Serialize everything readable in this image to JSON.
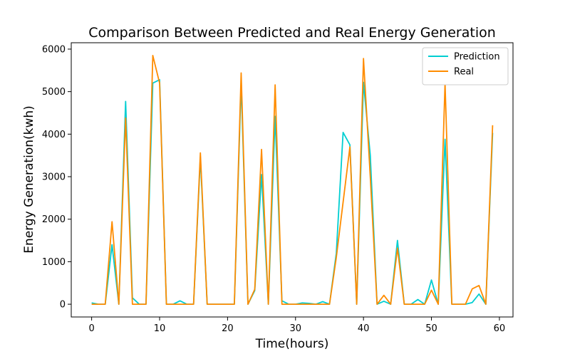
{
  "chart_data": {
    "type": "line",
    "title": "Comparison Between Predicted and Real Energy Generation",
    "xlabel": "Time(hours)",
    "ylabel": "Energy Generation(kwh)",
    "xlim": [
      -3,
      62
    ],
    "ylim": [
      -300,
      6150
    ],
    "xticks": [
      0,
      10,
      20,
      30,
      40,
      50,
      60
    ],
    "yticks": [
      0,
      1000,
      2000,
      3000,
      4000,
      5000,
      6000
    ],
    "grid": false,
    "legend_position": "top-right",
    "series": [
      {
        "name": "Prediction",
        "color": "#00CED1",
        "x": [
          0,
          1,
          2,
          3,
          4,
          5,
          6,
          7,
          8,
          9,
          10,
          11,
          12,
          13,
          14,
          15,
          16,
          17,
          18,
          19,
          20,
          21,
          22,
          23,
          24,
          25,
          26,
          27,
          28,
          29,
          30,
          31,
          32,
          33,
          34,
          35,
          36,
          37,
          38,
          39,
          40,
          41,
          42,
          43,
          44,
          45,
          46,
          47,
          48,
          49,
          50,
          51,
          52,
          53,
          54,
          55,
          56,
          57,
          58,
          59
        ],
        "values": [
          30,
          0,
          0,
          1400,
          0,
          4770,
          150,
          0,
          0,
          5200,
          5280,
          0,
          0,
          80,
          0,
          0,
          3450,
          0,
          0,
          0,
          0,
          0,
          5200,
          0,
          320,
          3050,
          0,
          4420,
          80,
          0,
          0,
          30,
          20,
          0,
          60,
          0,
          1200,
          4040,
          3750,
          0,
          5220,
          3500,
          0,
          70,
          0,
          1500,
          0,
          0,
          110,
          0,
          570,
          0,
          3880,
          0,
          0,
          0,
          40,
          240,
          0,
          4030
        ]
      },
      {
        "name": "Real",
        "color": "#FF8C00",
        "x": [
          0,
          1,
          2,
          3,
          4,
          5,
          6,
          7,
          8,
          9,
          10,
          11,
          12,
          13,
          14,
          15,
          16,
          17,
          18,
          19,
          20,
          21,
          22,
          23,
          24,
          25,
          26,
          27,
          28,
          29,
          30,
          31,
          32,
          33,
          34,
          35,
          36,
          37,
          38,
          39,
          40,
          41,
          42,
          43,
          44,
          45,
          46,
          47,
          48,
          49,
          50,
          51,
          52,
          53,
          54,
          55,
          56,
          57,
          58,
          59
        ],
        "values": [
          0,
          0,
          0,
          1940,
          0,
          4380,
          0,
          0,
          0,
          5850,
          5200,
          0,
          0,
          0,
          0,
          0,
          3560,
          0,
          0,
          0,
          0,
          0,
          5440,
          0,
          350,
          3640,
          0,
          5160,
          0,
          0,
          0,
          0,
          0,
          0,
          0,
          0,
          1100,
          2400,
          3700,
          0,
          5780,
          3000,
          0,
          210,
          0,
          1320,
          0,
          0,
          0,
          0,
          330,
          0,
          5200,
          0,
          0,
          0,
          360,
          440,
          0,
          4210
        ]
      }
    ]
  }
}
